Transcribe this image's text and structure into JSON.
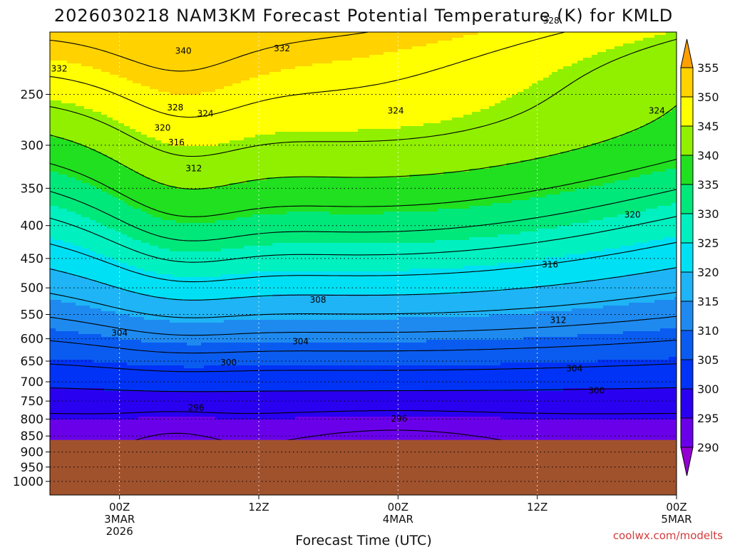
{
  "chart_data": {
    "type": "heatmap",
    "title": "2026030218 NAM3KM Forecast Potential Temperature (K) for KMLD",
    "xlabel": "Forecast Time (UTC)",
    "ylabel": "",
    "credit": "coolwx.com/modelts",
    "y_axis": {
      "scale": "pressure (hPa, inverted)",
      "ticks": [
        "250",
        "300",
        "350",
        "400",
        "450",
        "500",
        "550",
        "600",
        "650",
        "700",
        "750",
        "800",
        "850",
        "900",
        "950",
        "1000"
      ],
      "range": [
        200,
        1050
      ]
    },
    "x_axis": {
      "range_hours": [
        0,
        54
      ],
      "ticks": [
        {
          "hour": 6,
          "line1": "00Z",
          "line2": "3MAR",
          "line3": "2026"
        },
        {
          "hour": 18,
          "line1": "12Z",
          "line2": "",
          "line3": ""
        },
        {
          "hour": 30,
          "line1": "00Z",
          "line2": "4MAR",
          "line3": ""
        },
        {
          "hour": 42,
          "line1": "12Z",
          "line2": "",
          "line3": ""
        },
        {
          "hour": 54,
          "line1": "00Z",
          "line2": "5MAR",
          "line3": ""
        }
      ]
    },
    "colorbar": {
      "levels": [
        "290",
        "295",
        "300",
        "305",
        "310",
        "315",
        "320",
        "325",
        "330",
        "335",
        "340",
        "345",
        "350",
        "355"
      ],
      "colors": [
        "#9400d3",
        "#6a00ea",
        "#2a00f0",
        "#0033f5",
        "#0a5cf0",
        "#1e8af0",
        "#1eb4f5",
        "#00e0f5",
        "#00f0c0",
        "#00e87a",
        "#20e020",
        "#90f000",
        "#ffff00",
        "#ffd200",
        "#ffa000"
      ]
    },
    "terrain_pressure": 862,
    "terrain_color": "#a0522d",
    "contour_labels": [
      {
        "text": "332",
        "hour": 0.8,
        "p": 228
      },
      {
        "text": "340",
        "hour": 11.5,
        "p": 214
      },
      {
        "text": "332",
        "hour": 20,
        "p": 212
      },
      {
        "text": "328",
        "hour": 43.2,
        "p": 192
      },
      {
        "text": "328",
        "hour": 10.8,
        "p": 262
      },
      {
        "text": "324",
        "hour": 13.4,
        "p": 268
      },
      {
        "text": "324",
        "hour": 29.8,
        "p": 265
      },
      {
        "text": "324",
        "hour": 52.3,
        "p": 265
      },
      {
        "text": "320",
        "hour": 9.7,
        "p": 282
      },
      {
        "text": "316",
        "hour": 10.9,
        "p": 297
      },
      {
        "text": "312",
        "hour": 12.4,
        "p": 326
      },
      {
        "text": "320",
        "hour": 50.2,
        "p": 385
      },
      {
        "text": "316",
        "hour": 43.1,
        "p": 460
      },
      {
        "text": "308",
        "hour": 23.1,
        "p": 522
      },
      {
        "text": "312",
        "hour": 43.8,
        "p": 561
      },
      {
        "text": "304",
        "hour": 6.0,
        "p": 588
      },
      {
        "text": "304",
        "hour": 21.6,
        "p": 606
      },
      {
        "text": "300",
        "hour": 15.4,
        "p": 653
      },
      {
        "text": "304",
        "hour": 45.2,
        "p": 668
      },
      {
        "text": "300",
        "hour": 47.1,
        "p": 723
      },
      {
        "text": "296",
        "hour": 12.6,
        "p": 768
      },
      {
        "text": "296",
        "hour": 30.1,
        "p": 799
      }
    ]
  }
}
